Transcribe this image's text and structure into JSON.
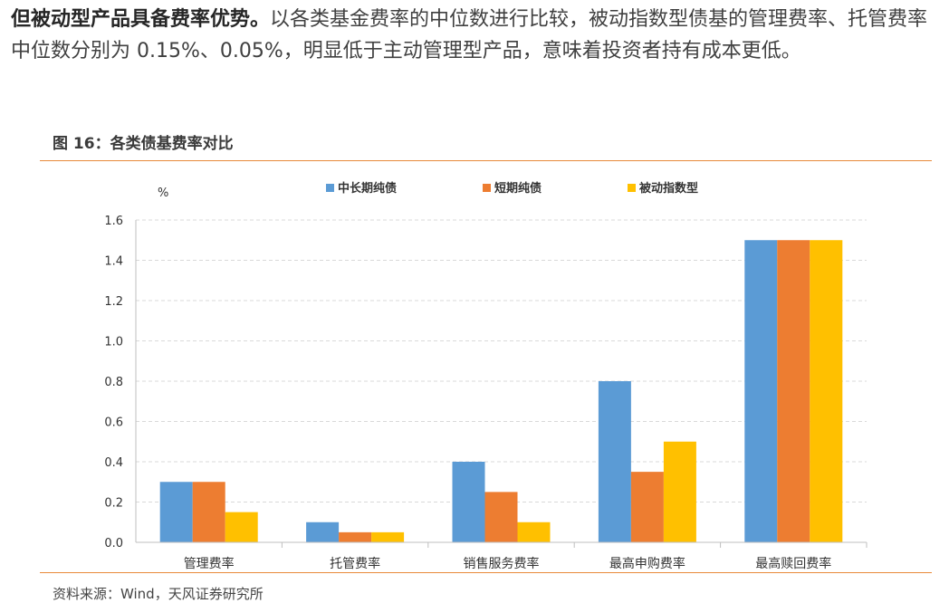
{
  "paragraph": {
    "lead": "但被动型产品具备费率优势。",
    "body": "以各类基金费率的中位数进行比较，被动指数型债基的管理费率、托管费率中位数分别为 0.15%、0.05%，明显低于主动管理型产品，意味着投资者持有成本更低。"
  },
  "figure": {
    "title": "图 16：各类债基费率对比",
    "source": "资料来源：Wind，天风证券研究所"
  },
  "chart_data": {
    "type": "bar",
    "ylabel": "%",
    "ylim": [
      0,
      1.6
    ],
    "yticks": [
      "0.0",
      "0.2",
      "0.4",
      "0.6",
      "0.8",
      "1.0",
      "1.2",
      "1.4",
      "1.6"
    ],
    "categories": [
      "管理费率",
      "托管费率",
      "销售服务费率",
      "最高申购费率",
      "最高赎回费率"
    ],
    "series": [
      {
        "name": "中长期纯债",
        "color": "#5b9bd5",
        "values": [
          0.3,
          0.1,
          0.4,
          0.8,
          1.5
        ]
      },
      {
        "name": "短期纯债",
        "color": "#ed7d31",
        "values": [
          0.3,
          0.05,
          0.25,
          0.35,
          1.5
        ]
      },
      {
        "name": "被动指数型",
        "color": "#ffc000",
        "values": [
          0.15,
          0.05,
          0.1,
          0.5,
          1.5
        ]
      }
    ],
    "grid": true,
    "legend": "top"
  }
}
